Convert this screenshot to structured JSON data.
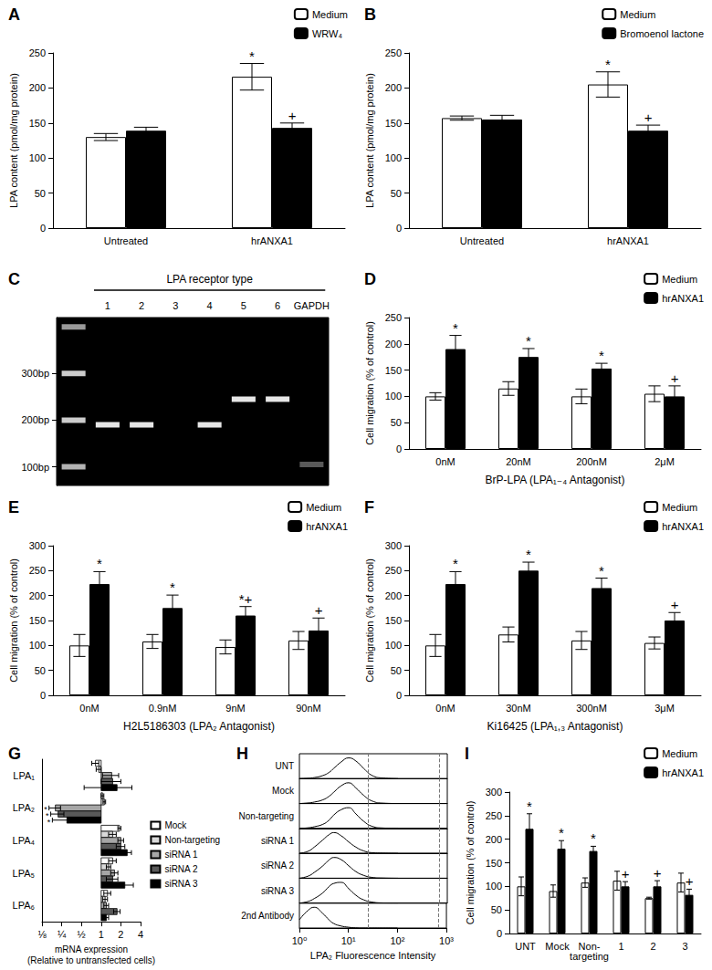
{
  "chart_data": [
    {
      "panel": "A",
      "type": "bar",
      "categories": [
        "Untreated",
        "hrANXA1"
      ],
      "series": [
        {
          "name": "Medium",
          "color": "#ffffff",
          "values": [
            130,
            216
          ],
          "errors": [
            5,
            19
          ]
        },
        {
          "name": "WRW₄",
          "color": "#000000",
          "values": [
            139,
            143
          ],
          "errors": [
            5,
            7
          ]
        }
      ],
      "ylim": [
        0,
        250
      ],
      "yticks": [
        0,
        50,
        100,
        150,
        200,
        250
      ],
      "ylabel": "LPA content (pmol/mg protein)",
      "legend": "top-right",
      "grid": false,
      "annotations": [
        {
          "series": "Medium",
          "category": "hrANXA1",
          "text": "*"
        },
        {
          "series": "WRW₄",
          "category": "hrANXA1",
          "text": "+"
        }
      ]
    },
    {
      "panel": "B",
      "type": "bar",
      "categories": [
        "Untreated",
        "hrANXA1"
      ],
      "series": [
        {
          "name": "Medium",
          "color": "#ffffff",
          "values": [
            157,
            205
          ],
          "errors": [
            3,
            18
          ]
        },
        {
          "name": "Bromoenol lactone",
          "color": "#000000",
          "values": [
            155,
            139
          ],
          "errors": [
            6,
            8
          ]
        }
      ],
      "ylim": [
        0,
        250
      ],
      "yticks": [
        0,
        50,
        100,
        150,
        200,
        250
      ],
      "ylabel": "LPA content (pmol/mg protein)",
      "legend": "top-right",
      "grid": false,
      "annotations": [
        {
          "series": "Medium",
          "category": "hrANXA1",
          "text": "*"
        },
        {
          "series": "Bromoenol lactone",
          "category": "hrANXA1",
          "text": "+"
        }
      ]
    },
    {
      "panel": "C",
      "type": "gel",
      "header": "LPA receptor type",
      "categories": [
        null,
        "1",
        "2",
        "3",
        "4",
        "5",
        "6",
        "GAPDH"
      ],
      "ylim": [
        60,
        420
      ],
      "yticks": [
        {
          "value": 100,
          "label": "100bp"
        },
        {
          "value": 200,
          "label": "200bp"
        },
        {
          "value": 300,
          "label": "300bp"
        }
      ],
      "bands": [
        {
          "lane": 0,
          "bp": 100,
          "intensity": 0.7
        },
        {
          "lane": 0,
          "bp": 200,
          "intensity": 0.8
        },
        {
          "lane": 0,
          "bp": 300,
          "intensity": 0.8
        },
        {
          "lane": 0,
          "bp": 400,
          "intensity": 0.6
        },
        {
          "lane": 1,
          "bp": 190,
          "intensity": 0.9
        },
        {
          "lane": 2,
          "bp": 190,
          "intensity": 0.9
        },
        {
          "lane": 4,
          "bp": 190,
          "intensity": 0.9
        },
        {
          "lane": 5,
          "bp": 245,
          "intensity": 0.9
        },
        {
          "lane": 6,
          "bp": 245,
          "intensity": 0.9
        },
        {
          "lane": 7,
          "bp": 105,
          "intensity": 0.35
        }
      ]
    },
    {
      "panel": "D",
      "type": "bar",
      "categories": [
        "0nM",
        "20nM",
        "200nM",
        "2μM"
      ],
      "series": [
        {
          "name": "Medium",
          "color": "#ffffff",
          "values": [
            100,
            115,
            100,
            105
          ],
          "errors": [
            7,
            13,
            14,
            15
          ]
        },
        {
          "name": "hrANXA1",
          "color": "#000000",
          "values": [
            190,
            175,
            153,
            100
          ],
          "errors": [
            26,
            16,
            10,
            20
          ]
        }
      ],
      "ylim": [
        0,
        250
      ],
      "yticks": [
        0,
        50,
        100,
        150,
        200,
        250
      ],
      "ylabel": "Cell migration (% of control)",
      "xlabel": "BrP-LPA (LPA₁₋₄ Antagonist)",
      "legend": "top-right",
      "grid": false,
      "annotations": [
        {
          "series": "hrANXA1",
          "category": "0nM",
          "text": "*"
        },
        {
          "series": "hrANXA1",
          "category": "20nM",
          "text": "*"
        },
        {
          "series": "hrANXA1",
          "category": "200nM",
          "text": "*"
        },
        {
          "series": "hrANXA1",
          "category": "2μM",
          "text": "+"
        }
      ]
    },
    {
      "panel": "E",
      "type": "bar",
      "categories": [
        "0nM",
        "0.9nM",
        "9nM",
        "90nM"
      ],
      "series": [
        {
          "name": "Medium",
          "color": "#ffffff",
          "values": [
            100,
            108,
            97,
            110
          ],
          "errors": [
            22,
            14,
            14,
            18
          ]
        },
        {
          "name": "hrANXA1",
          "color": "#000000",
          "values": [
            223,
            175,
            160,
            130
          ],
          "errors": [
            25,
            26,
            18,
            25
          ]
        }
      ],
      "ylim": [
        0,
        300
      ],
      "yticks": [
        0,
        50,
        100,
        150,
        200,
        250,
        300
      ],
      "ylabel": "Cell migration (% of control)",
      "xlabel": "H2L5186303 (LPA₂ Antagonist)",
      "legend": "top-right",
      "grid": false,
      "annotations": [
        {
          "series": "hrANXA1",
          "category": "0nM",
          "text": "*"
        },
        {
          "series": "hrANXA1",
          "category": "0.9nM",
          "text": "*"
        },
        {
          "series": "hrANXA1",
          "category": "9nM",
          "text": "*+"
        },
        {
          "series": "hrANXA1",
          "category": "90nM",
          "text": "+"
        }
      ]
    },
    {
      "panel": "F",
      "type": "bar",
      "categories": [
        "0nM",
        "30nM",
        "300nM",
        "3μM"
      ],
      "series": [
        {
          "name": "Medium",
          "color": "#ffffff",
          "values": [
            100,
            122,
            110,
            105
          ],
          "errors": [
            22,
            15,
            18,
            12
          ]
        },
        {
          "name": "hrANXA1",
          "color": "#000000",
          "values": [
            223,
            250,
            215,
            150
          ],
          "errors": [
            25,
            17,
            20,
            16
          ]
        }
      ],
      "ylim": [
        0,
        300
      ],
      "yticks": [
        0,
        50,
        100,
        150,
        200,
        250,
        300
      ],
      "ylabel": "Cell migration (% of control)",
      "xlabel": "Ki16425 (LPA₁,₃ Antagonist)",
      "legend": "top-right",
      "grid": false,
      "annotations": [
        {
          "series": "hrANXA1",
          "category": "0nM",
          "text": "*"
        },
        {
          "series": "hrANXA1",
          "category": "30nM",
          "text": "*"
        },
        {
          "series": "hrANXA1",
          "category": "300nM",
          "text": "*"
        },
        {
          "series": "hrANXA1",
          "category": "3μM",
          "text": "+"
        }
      ]
    },
    {
      "panel": "G",
      "type": "bar",
      "orientation": "horizontal",
      "log": "x",
      "baseline": 1,
      "categories": [
        "LPA₁",
        "LPA₂",
        "LPA₄",
        "LPA₅",
        "LPA₆"
      ],
      "series": [
        {
          "name": "Mock",
          "color": "#ffffff",
          "values": [
            0.82,
            1.05,
            1.9,
            1.5,
            1.25
          ],
          "errors": [
            0.1,
            0.05,
            0.1,
            0.2,
            0.15
          ]
        },
        {
          "name": "Non-targeting",
          "color": "#d9d9d9",
          "values": [
            0.92,
            1.12,
            1.5,
            1.3,
            1.15
          ],
          "errors": [
            0.08,
            0.05,
            0.2,
            0.1,
            0.1
          ]
        },
        {
          "name": "siRNA 1",
          "color": "#a6a6a6",
          "values": [
            1.45,
            0.2,
            2.0,
            1.6,
            1.2
          ],
          "errors": [
            0.4,
            0.04,
            0.2,
            0.2,
            0.1
          ]
        },
        {
          "name": "siRNA 2",
          "color": "#595959",
          "values": [
            1.5,
            0.22,
            2.0,
            1.5,
            1.75
          ],
          "errors": [
            0.5,
            0.05,
            0.3,
            0.3,
            0.2
          ]
        },
        {
          "name": "siRNA 3",
          "color": "#000000",
          "values": [
            1.75,
            0.3,
            2.5,
            2.3,
            1.2
          ],
          "errors": [
            1.2,
            0.12,
            0.4,
            0.8,
            0.1
          ]
        }
      ],
      "xlim": [
        0.125,
        4
      ],
      "xticks": [
        {
          "value": 0.125,
          "label": "⅛"
        },
        {
          "value": 0.25,
          "label": "¼"
        },
        {
          "value": 0.5,
          "label": "½"
        },
        1,
        2,
        4
      ],
      "xlabel": "mRNA expression\n(Relative to untransfected cells)",
      "legend": "right",
      "grid": false,
      "annotations": [
        {
          "series": "siRNA 1",
          "category": "LPA₂",
          "text": "*"
        },
        {
          "series": "siRNA 2",
          "category": "LPA₂",
          "text": "*"
        },
        {
          "series": "siRNA 3",
          "category": "LPA₂",
          "text": "*"
        }
      ]
    },
    {
      "panel": "H",
      "type": "flow_histogram",
      "log": "x",
      "color": "#000000",
      "x": [
        1,
        1.5,
        2,
        3,
        4,
        5,
        7,
        10,
        14,
        20,
        30,
        50,
        100
      ],
      "series": [
        {
          "name": "UNT",
          "values": [
            0,
            0.02,
            0.05,
            0.15,
            0.3,
            0.5,
            0.8,
            1.0,
            0.85,
            0.5,
            0.15,
            0.03,
            0
          ]
        },
        {
          "name": "Mock",
          "values": [
            0,
            0.03,
            0.07,
            0.18,
            0.35,
            0.55,
            0.85,
            1.0,
            0.75,
            0.4,
            0.12,
            0.02,
            0
          ]
        },
        {
          "name": "Non-targeting",
          "values": [
            0,
            0.03,
            0.08,
            0.2,
            0.4,
            0.65,
            0.9,
            1.0,
            0.7,
            0.35,
            0.1,
            0.02,
            0
          ]
        },
        {
          "name": "siRNA 1",
          "values": [
            0,
            0.1,
            0.3,
            0.65,
            0.9,
            1.0,
            0.85,
            0.55,
            0.3,
            0.12,
            0.03,
            0.01,
            0
          ]
        },
        {
          "name": "siRNA 2",
          "values": [
            0,
            0.1,
            0.28,
            0.6,
            0.88,
            1.0,
            0.9,
            0.6,
            0.32,
            0.14,
            0.04,
            0.01,
            0
          ]
        },
        {
          "name": "siRNA 3",
          "values": [
            0,
            0.08,
            0.22,
            0.5,
            0.8,
            0.95,
            1.0,
            0.7,
            0.38,
            0.16,
            0.05,
            0.01,
            0
          ]
        },
        {
          "name": "2nd Antibody",
          "values": [
            0.4,
            0.85,
            1.0,
            0.7,
            0.4,
            0.22,
            0.1,
            0.04,
            0.01,
            0,
            0,
            0,
            0
          ]
        }
      ],
      "xlim": [
        1,
        1000
      ],
      "xticks": [
        {
          "value": 1,
          "label": "10⁰"
        },
        {
          "value": 10,
          "label": "10¹"
        },
        {
          "value": 100,
          "label": "10²"
        },
        {
          "value": 1000,
          "label": "10³"
        }
      ],
      "ylim": [
        0,
        1.2
      ],
      "reference_lines": [
        25,
        700
      ],
      "xlabel": "LPA₂ Fluorescence Intensity",
      "tick_labels": "x"
    },
    {
      "panel": "I",
      "type": "bar",
      "categories": [
        "UNT",
        "Mock",
        "Non-\ntargeting",
        "1",
        "2",
        "3"
      ],
      "series": [
        {
          "name": "Medium",
          "color": "#ffffff",
          "values": [
            100,
            90,
            108,
            112,
            75,
            108
          ],
          "errors": [
            20,
            13,
            10,
            20,
            2,
            20
          ]
        },
        {
          "name": "hrANXA1",
          "color": "#000000",
          "values": [
            222,
            180,
            175,
            100,
            100,
            82
          ],
          "errors": [
            32,
            17,
            10,
            10,
            12,
            12
          ]
        }
      ],
      "ylim": [
        0,
        300
      ],
      "yticks": [
        0,
        50,
        100,
        150,
        200,
        250,
        300
      ],
      "ylabel": "Cell migration (% of control)",
      "legend": "top-right",
      "grid": false,
      "annotations": [
        {
          "series": "hrANXA1",
          "category": "UNT",
          "text": "*"
        },
        {
          "series": "hrANXA1",
          "category": "Mock",
          "text": "*"
        },
        {
          "series": "hrANXA1",
          "category": "Non-\ntargeting",
          "text": "*"
        },
        {
          "series": "hrANXA1",
          "category": "1",
          "text": "+"
        },
        {
          "series": "hrANXA1",
          "category": "2",
          "text": "+"
        },
        {
          "series": "hrANXA1",
          "category": "3",
          "text": "+"
        }
      ]
    }
  ]
}
